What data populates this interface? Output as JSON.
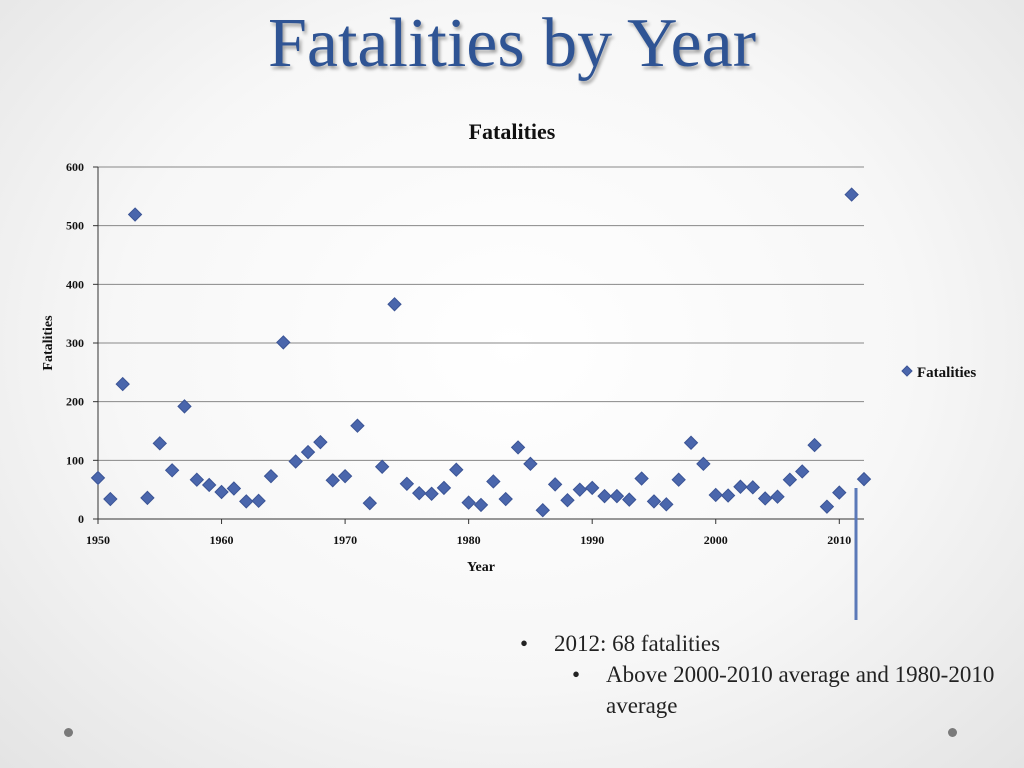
{
  "slide": {
    "title": "Fatalities by Year",
    "bullets": [
      {
        "text": "2012: 68 fatalities",
        "level": 1
      },
      {
        "text": "Above 2000-2010 average and 1980-2010 average",
        "level": 2
      }
    ],
    "bullet_symbol": "•"
  },
  "colors": {
    "title": "#2f5494",
    "marker": "#4a66ac",
    "marker_stroke": "#3b5495",
    "gridline": "#888888",
    "pointer_line": "#5b79b8"
  },
  "chart_data": {
    "type": "scatter",
    "title": "Fatalities",
    "xlabel": "Year",
    "ylabel": "Fatalities",
    "xlim": [
      1950,
      2012
    ],
    "ylim": [
      0,
      600
    ],
    "xticks": [
      1950,
      1960,
      1970,
      1980,
      1990,
      2000,
      2010
    ],
    "yticks": [
      0,
      100,
      200,
      300,
      400,
      500,
      600
    ],
    "grid": true,
    "legend": "right",
    "marker": "diamond",
    "series": [
      {
        "name": "Fatalities",
        "points": [
          [
            1950,
            70
          ],
          [
            1951,
            34
          ],
          [
            1952,
            230
          ],
          [
            1953,
            519
          ],
          [
            1954,
            36
          ],
          [
            1955,
            129
          ],
          [
            1956,
            83
          ],
          [
            1957,
            192
          ],
          [
            1958,
            67
          ],
          [
            1959,
            58
          ],
          [
            1960,
            46
          ],
          [
            1961,
            52
          ],
          [
            1962,
            30
          ],
          [
            1963,
            31
          ],
          [
            1964,
            73
          ],
          [
            1965,
            301
          ],
          [
            1966,
            98
          ],
          [
            1967,
            114
          ],
          [
            1968,
            131
          ],
          [
            1969,
            66
          ],
          [
            1970,
            73
          ],
          [
            1971,
            159
          ],
          [
            1972,
            27
          ],
          [
            1973,
            89
          ],
          [
            1974,
            366
          ],
          [
            1975,
            60
          ],
          [
            1976,
            44
          ],
          [
            1977,
            43
          ],
          [
            1978,
            53
          ],
          [
            1979,
            84
          ],
          [
            1980,
            28
          ],
          [
            1981,
            24
          ],
          [
            1982,
            64
          ],
          [
            1983,
            34
          ],
          [
            1984,
            122
          ],
          [
            1985,
            94
          ],
          [
            1986,
            15
          ],
          [
            1987,
            59
          ],
          [
            1988,
            32
          ],
          [
            1989,
            50
          ],
          [
            1990,
            53
          ],
          [
            1991,
            39
          ],
          [
            1992,
            39
          ],
          [
            1993,
            33
          ],
          [
            1994,
            69
          ],
          [
            1995,
            30
          ],
          [
            1996,
            25
          ],
          [
            1997,
            67
          ],
          [
            1998,
            130
          ],
          [
            1999,
            94
          ],
          [
            2000,
            41
          ],
          [
            2001,
            40
          ],
          [
            2002,
            55
          ],
          [
            2003,
            54
          ],
          [
            2004,
            35
          ],
          [
            2005,
            38
          ],
          [
            2006,
            67
          ],
          [
            2007,
            81
          ],
          [
            2008,
            126
          ],
          [
            2009,
            21
          ],
          [
            2010,
            45
          ],
          [
            2011,
            553
          ],
          [
            2012,
            68
          ]
        ]
      }
    ]
  }
}
